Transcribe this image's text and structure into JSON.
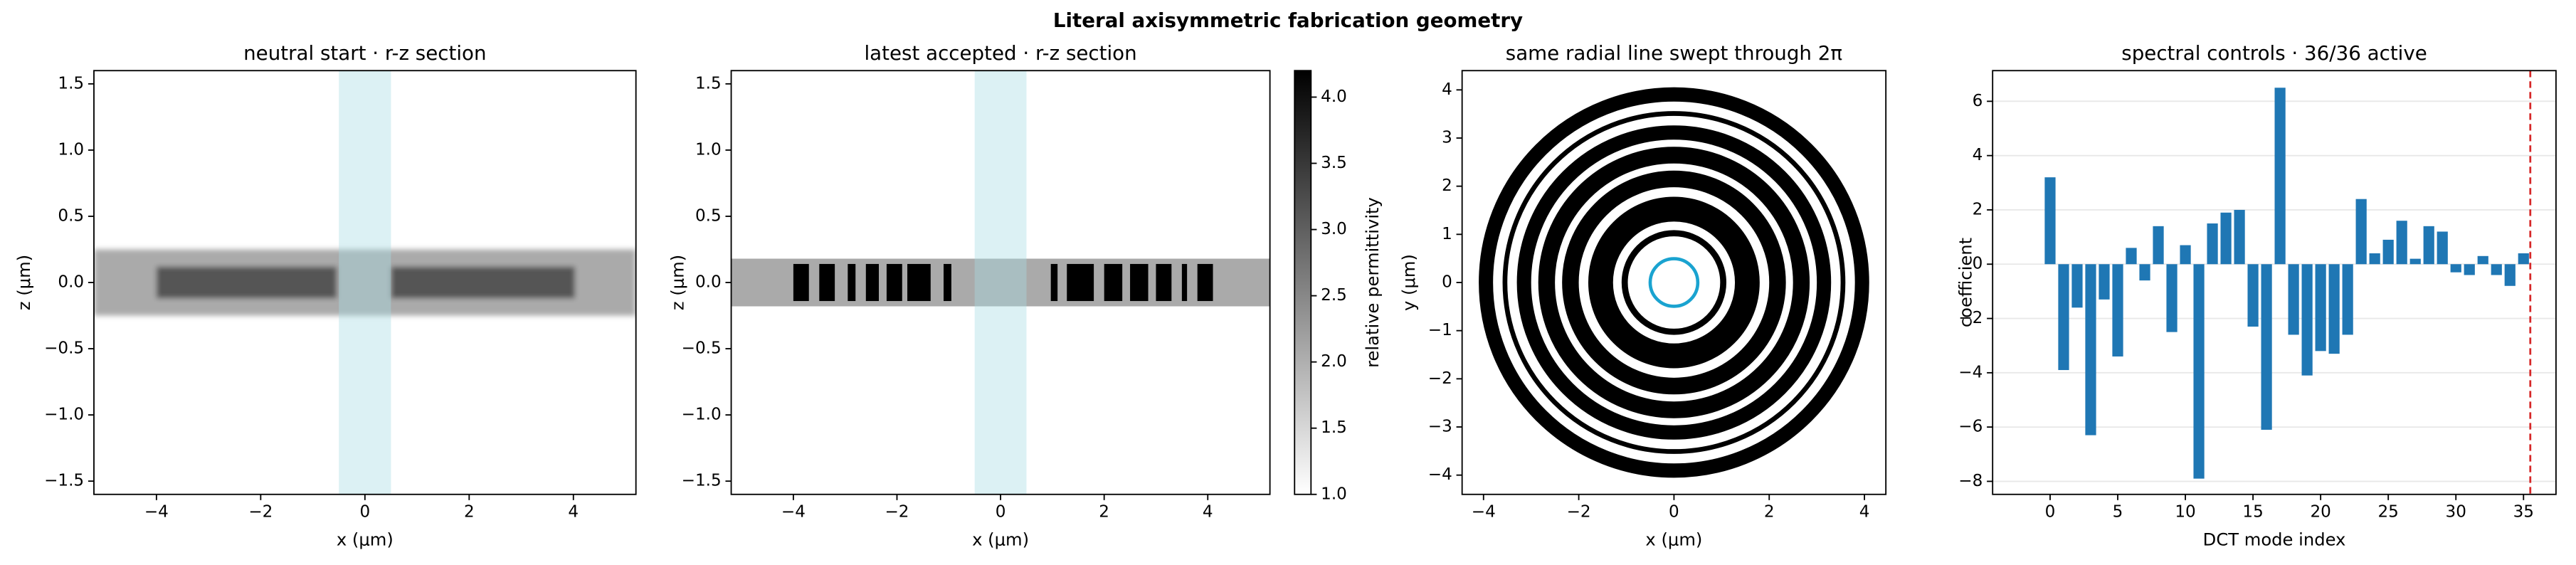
{
  "title": "Literal axisymmetric fabrication geometry",
  "chart_data": [
    {
      "type": "section",
      "title": "neutral start · r-z section",
      "xlabel": "x (μm)",
      "ylabel": "z (μm)",
      "blurred": true,
      "xlim": [
        -5.2,
        5.2
      ],
      "ylim": [
        -1.6,
        1.6
      ],
      "xticks": [
        {
          "value": -4,
          "label": "−4"
        },
        {
          "value": -2,
          "label": "−2"
        },
        0,
        2,
        4
      ],
      "yticks": [
        {
          "value": -1.5,
          "label": "−1.5"
        },
        {
          "value": -1,
          "label": "−1.0"
        },
        {
          "value": -0.5,
          "label": "−0.5"
        },
        {
          "value": 0,
          "label": "0.0"
        },
        0.5,
        {
          "value": 1,
          "label": "1.0"
        },
        1.5
      ],
      "highlight_x": [
        -0.5,
        0.5
      ],
      "highlight_color": "#a8dde3",
      "regions": [
        {
          "x": [
            -5.2,
            5.2
          ],
          "z": [
            -0.25,
            0.25
          ],
          "permittivity": 2.07
        },
        {
          "x": [
            -4.0,
            -0.54
          ],
          "z": [
            -0.12,
            0.12
          ],
          "permittivity": 3.13
        },
        {
          "x": [
            0.5,
            4.03
          ],
          "z": [
            -0.12,
            0.12
          ],
          "permittivity": 3.13
        }
      ]
    },
    {
      "type": "section",
      "title": "latest accepted · r-z section",
      "xlabel": "x (μm)",
      "ylabel": "z (μm)",
      "blurred": false,
      "xlim": [
        -5.2,
        5.2
      ],
      "ylim": [
        -1.6,
        1.6
      ],
      "xticks": [
        {
          "value": -4,
          "label": "−4"
        },
        {
          "value": -2,
          "label": "−2"
        },
        0,
        2,
        4
      ],
      "yticks": [
        {
          "value": -1.5,
          "label": "−1.5"
        },
        {
          "value": -1,
          "label": "−1.0"
        },
        {
          "value": -0.5,
          "label": "−0.5"
        },
        {
          "value": 0,
          "label": "0.0"
        },
        0.5,
        {
          "value": 1,
          "label": "1.0"
        },
        1.5
      ],
      "highlight_x": [
        -0.5,
        0.5
      ],
      "highlight_color": "#a8dde3",
      "regions": [
        {
          "x": [
            -5.2,
            5.2
          ],
          "z": [
            -0.18,
            0.18
          ],
          "permittivity": 2.07
        },
        {
          "x": [
            -4.0,
            -3.7
          ],
          "z": [
            -0.14,
            0.14
          ],
          "permittivity": 4.2
        },
        {
          "x": [
            -3.5,
            -3.2
          ],
          "z": [
            -0.14,
            0.14
          ],
          "permittivity": 4.2
        },
        {
          "x": [
            -2.95,
            -2.8
          ],
          "z": [
            -0.14,
            0.14
          ],
          "permittivity": 4.2
        },
        {
          "x": [
            -2.6,
            -2.35
          ],
          "z": [
            -0.14,
            0.14
          ],
          "permittivity": 4.2
        },
        {
          "x": [
            -2.2,
            -1.9
          ],
          "z": [
            -0.14,
            0.14
          ],
          "permittivity": 4.2
        },
        {
          "x": [
            -1.8,
            -1.35
          ],
          "z": [
            -0.14,
            0.14
          ],
          "permittivity": 4.2
        },
        {
          "x": [
            -1.1,
            -0.95
          ],
          "z": [
            -0.14,
            0.14
          ],
          "permittivity": 4.2
        },
        {
          "x": [
            0.97,
            1.1
          ],
          "z": [
            -0.14,
            0.14
          ],
          "permittivity": 4.2
        },
        {
          "x": [
            1.28,
            1.8
          ],
          "z": [
            -0.14,
            0.14
          ],
          "permittivity": 4.2
        },
        {
          "x": [
            2.0,
            2.35
          ],
          "z": [
            -0.14,
            0.14
          ],
          "permittivity": 4.2
        },
        {
          "x": [
            2.5,
            2.85
          ],
          "z": [
            -0.14,
            0.14
          ],
          "permittivity": 4.2
        },
        {
          "x": [
            3.0,
            3.3
          ],
          "z": [
            -0.14,
            0.14
          ],
          "permittivity": 4.2
        },
        {
          "x": [
            3.5,
            3.6
          ],
          "z": [
            -0.14,
            0.14
          ],
          "permittivity": 4.2
        },
        {
          "x": [
            3.8,
            4.1
          ],
          "z": [
            -0.14,
            0.14
          ],
          "permittivity": 4.2
        }
      ],
      "colorbar": {
        "label": "relative permittivity",
        "lim": [
          1.0,
          4.2
        ],
        "ticks": [
          {
            "value": 1,
            "label": "1.0"
          },
          1.5,
          {
            "value": 2,
            "label": "2.0"
          },
          2.5,
          {
            "value": 3,
            "label": "3.0"
          },
          3.5,
          {
            "value": 4,
            "label": "4.0"
          }
        ]
      }
    },
    {
      "type": "rings",
      "title": "same radial line swept through 2π",
      "xlabel": "x (μm)",
      "ylabel": "y (μm)",
      "xlim": [
        -4.45,
        4.45
      ],
      "ylim": [
        -4.4,
        4.4
      ],
      "xticks": [
        {
          "value": -4,
          "label": "−4"
        },
        {
          "value": -2,
          "label": "−2"
        },
        0,
        2,
        4
      ],
      "yticks": [
        {
          "value": -4,
          "label": "−4"
        },
        {
          "value": -3,
          "label": "−3"
        },
        {
          "value": -2,
          "label": "−2"
        },
        {
          "value": -1,
          "label": "−1"
        },
        0,
        1,
        2,
        3,
        4
      ],
      "ring_color": "#000000",
      "source_radius": 0.5,
      "source_color": "#1aa3d0",
      "rings": [
        [
          0.97,
          1.1
        ],
        [
          1.28,
          1.8
        ],
        [
          2.0,
          2.35
        ],
        [
          2.5,
          2.85
        ],
        [
          3.0,
          3.3
        ],
        [
          3.5,
          3.6
        ],
        [
          3.8,
          4.1
        ]
      ]
    },
    {
      "type": "bar",
      "title": "spectral controls · 36/36 active",
      "xlabel": "DCT mode index",
      "ylabel": "coefficient",
      "grid": true,
      "color": "#1f77b4",
      "xlim": [
        -4.25,
        37.4
      ],
      "ylim": [
        -8.48,
        7.13
      ],
      "xticks": [
        0,
        5,
        10,
        15,
        20,
        25,
        30,
        35
      ],
      "yticks": [
        {
          "value": -8,
          "label": "−8"
        },
        {
          "value": -6,
          "label": "−6"
        },
        {
          "value": -4,
          "label": "−4"
        },
        {
          "value": -2,
          "label": "−2"
        },
        0,
        2,
        4,
        6
      ],
      "x": [
        0,
        1,
        2,
        3,
        4,
        5,
        6,
        7,
        8,
        9,
        10,
        11,
        12,
        13,
        14,
        15,
        16,
        17,
        18,
        19,
        20,
        21,
        22,
        23,
        24,
        25,
        26,
        27,
        28,
        29,
        30,
        31,
        32,
        33,
        34,
        35
      ],
      "values": [
        3.2,
        -3.9,
        -1.6,
        -6.3,
        -1.3,
        -3.4,
        0.6,
        -0.6,
        1.4,
        -2.5,
        0.7,
        -7.9,
        1.5,
        1.9,
        2.0,
        -2.3,
        -6.1,
        6.5,
        -2.6,
        -4.1,
        -3.2,
        -3.3,
        -2.6,
        2.4,
        0.4,
        0.9,
        1.6,
        0.2,
        1.4,
        1.2,
        -0.3,
        -0.4,
        0.3,
        -0.4,
        -0.8,
        0.4
      ],
      "marker_x": 35.5,
      "marker_color": "#d62728"
    }
  ]
}
